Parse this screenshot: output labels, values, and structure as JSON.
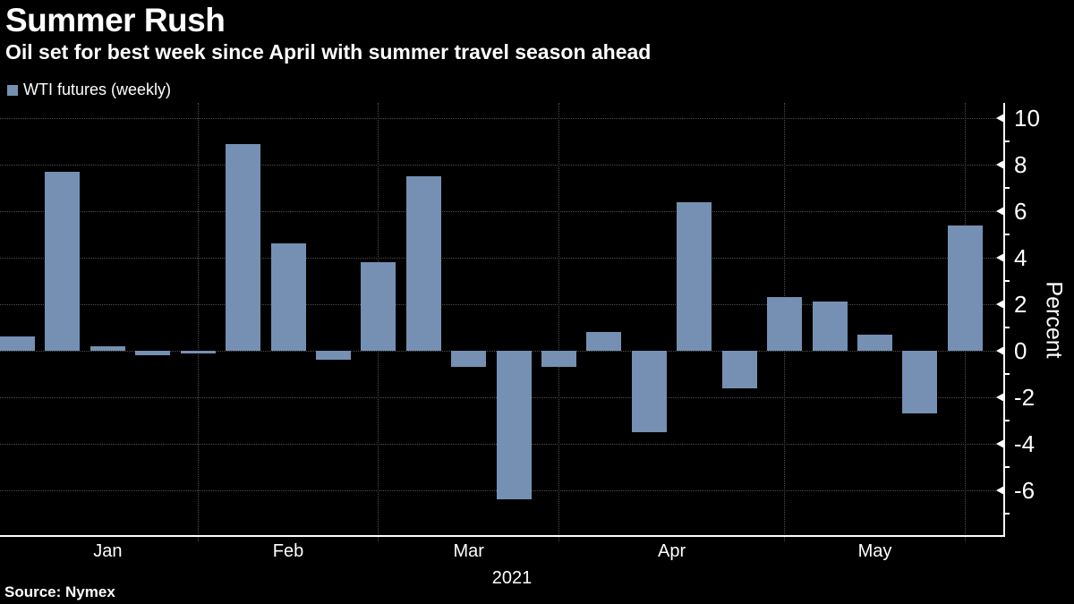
{
  "header": {
    "title": "Summer Rush",
    "subtitle": "Oil set for best week since April with summer travel season ahead"
  },
  "legend": {
    "label": "WTI futures (weekly)"
  },
  "source": "Source: Nymex",
  "chart_data": {
    "type": "bar",
    "title": "Summer Rush",
    "subtitle": "Oil set for best week since April with summer travel season ahead",
    "series_name": "WTI futures (weekly)",
    "months": [
      {
        "label": "Jan",
        "values": [
          0.6,
          7.7,
          0.2,
          -0.2,
          -0.1
        ]
      },
      {
        "label": "Feb",
        "values": [
          8.9,
          4.6,
          -0.4,
          3.8
        ]
      },
      {
        "label": "Mar",
        "values": [
          7.5,
          -0.7,
          -6.4,
          -0.7
        ]
      },
      {
        "label": "Apr",
        "values": [
          0.8,
          -3.5,
          6.4,
          -1.6,
          2.3
        ]
      },
      {
        "label": "May",
        "values": [
          2.1,
          0.7,
          -2.7,
          5.4
        ]
      }
    ],
    "x_axis": {
      "year_label": "2021",
      "month_labels": [
        "Jan",
        "Feb",
        "Mar",
        "Apr",
        "May"
      ]
    },
    "y_axis": {
      "title": "Percent",
      "major_ticks": [
        10,
        8,
        6,
        4,
        2,
        0,
        -2,
        -4,
        -6
      ],
      "minor_ticks": [
        9,
        7,
        5,
        3,
        1,
        -1,
        -3,
        -5,
        -7
      ],
      "range": [
        -8,
        10.6
      ],
      "grid": "dotted horizontal at major ticks, dotted vertical at month ends"
    },
    "colors": {
      "background": "#000000",
      "bar": "#7590B2",
      "grid": "#4f4f4f",
      "axis": "#ffffff",
      "text": "#ffffff"
    }
  }
}
